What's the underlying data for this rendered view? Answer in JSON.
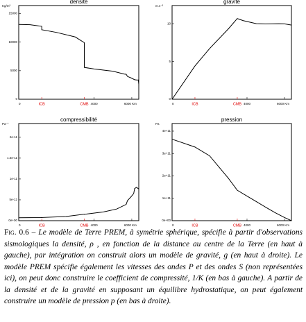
{
  "chart_data": [
    {
      "type": "line",
      "title": "densité",
      "y_unit": "Kg/m³",
      "color": "#000000",
      "boundary_color": "#e00000",
      "x": [
        0,
        600,
        1221,
        1221,
        2000,
        3000,
        3480,
        3480,
        4000,
        4500,
        5000,
        5600,
        5701,
        5771,
        5971,
        6151,
        6291,
        6346,
        6371
      ],
      "values": [
        13088,
        13040,
        12764,
        12166,
        11700,
        10900,
        9903,
        5566,
        5300,
        5100,
        4900,
        4400,
        4380,
        3990,
        3720,
        3420,
        3360,
        3380,
        2600
      ],
      "xlim": [
        0,
        6371
      ],
      "xticks": [
        0,
        4000,
        {
          "value": 6000,
          "label": "6000 Km"
        }
      ],
      "boundaries": [
        {
          "value": 1221,
          "label": "ICB"
        },
        {
          "value": 3480,
          "label": "CMB"
        }
      ],
      "ylim": [
        0,
        16400
      ],
      "yticks": [
        0,
        5000,
        10000,
        15000
      ]
    },
    {
      "type": "line",
      "title": "gravité",
      "y_unit": "m.s⁻²",
      "color": "#000000",
      "boundary_color": "#e00000",
      "x": [
        0,
        1221,
        2000,
        3000,
        3480,
        3800,
        4500,
        5000,
        5700,
        6000,
        6371
      ],
      "values": [
        0,
        4.4,
        6.7,
        9.3,
        10.68,
        10.4,
        10.0,
        9.96,
        9.99,
        9.98,
        9.82
      ],
      "xlim": [
        0,
        6371
      ],
      "xticks": [
        0,
        4000,
        {
          "value": 6000,
          "label": "6000 Km"
        }
      ],
      "boundaries": [
        {
          "value": 1221,
          "label": "ICB"
        },
        {
          "value": 3480,
          "label": "CMB"
        }
      ],
      "ylim": [
        0,
        12.4
      ],
      "yticks": [
        0,
        5,
        10
      ]
    },
    {
      "type": "line",
      "title": "compressibilité",
      "y_unit": "Pa⁻¹",
      "color": "#000000",
      "boundary_color": "#e00000",
      "x": [
        0,
        1221,
        1221,
        2500,
        3480,
        3480,
        4500,
        5200,
        5701,
        5771,
        5971,
        6100,
        6151,
        6250,
        6371
      ],
      "values": [
        7e-13,
        7.5e-13,
        7.6e-13,
        1e-12,
        1.55e-12,
        1.52e-12,
        2.1e-12,
        2.8e-12,
        3.9e-12,
        4.8e-12,
        5.8e-12,
        6.5e-12,
        7.7e-12,
        8e-12,
        7.6e-12
      ],
      "xlim": [
        0,
        6371
      ],
      "xticks": [
        0,
        4000,
        {
          "value": 6000,
          "label": "6000 Km"
        }
      ],
      "boundaries": [
        {
          "value": 1221,
          "label": "ICB"
        },
        {
          "value": 3480,
          "label": "CMB"
        }
      ],
      "ylim": [
        0,
        2.33e-11
      ],
      "yticks": [
        {
          "value": 0,
          "label": "0e+00"
        },
        {
          "value": 5e-12,
          "label": "5e-12"
        },
        {
          "value": 1e-11,
          "label": "1e-11"
        },
        {
          "value": 1.5e-11,
          "label": "1.5e-11"
        },
        {
          "value": 2e-11,
          "label": "2e-11"
        }
      ]
    },
    {
      "type": "line",
      "title": "pression",
      "y_unit": "Pa",
      "color": "#000000",
      "boundary_color": "#e00000",
      "x": [
        0,
        1221,
        2000,
        3000,
        3480,
        4000,
        4500,
        5000,
        5500,
        6000,
        6371
      ],
      "values": [
        364000000000.0,
        329000000000.0,
        290000000000.0,
        190000000000.0,
        136000000000.0,
        110000000000.0,
        85000000000.0,
        60000000000.0,
        36000000000.0,
        14000000000.0,
        0
      ],
      "xlim": [
        0,
        6371
      ],
      "xticks": [
        0,
        4000,
        {
          "value": 6000,
          "label": "6000 Km"
        }
      ],
      "boundaries": [
        {
          "value": 1221,
          "label": "ICB"
        },
        {
          "value": 3480,
          "label": "CMB"
        }
      ],
      "ylim": [
        0,
        434000000000.0
      ],
      "yticks": [
        {
          "value": 0,
          "label": "0e+00"
        },
        {
          "value": 100000000000.0,
          "label": "1e+11"
        },
        {
          "value": 200000000000.0,
          "label": "2e+11"
        },
        {
          "value": 300000000000.0,
          "label": "3e+11"
        },
        {
          "value": 400000000000.0,
          "label": "4e+11"
        }
      ]
    }
  ],
  "caption": {
    "label": "Fig. 0.6 –",
    "text": "Le modèle de Terre PREM, à symétrie sphérique, spécifie à partir d'observations sismologiques la densité, ρ , en fonction de la distance au centre de la Terre (en haut à gauche), par intégration on construit alors un modèle de gravité, g (en haut à droite). Le modèle PREM spécifie également les vitesses des ondes P et des ondes S (non représentées ici), on peut donc construire le coefficient de compressité, 1/K (en bas à gauche). A partir de la densité et de la gravité en supposant un équilibre hydrostatique, on peut également construire un modèle de pression p (en bas à droite)."
  }
}
